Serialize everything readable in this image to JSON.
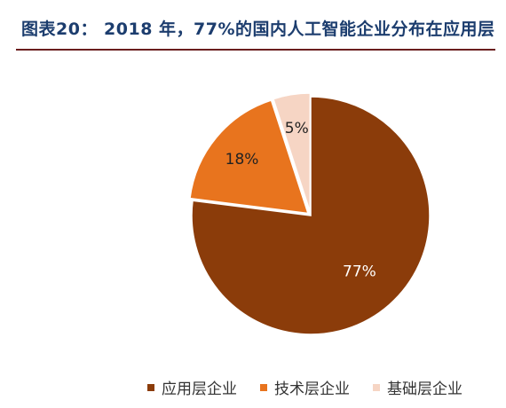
{
  "title": "图表20： 2018 年，77%的国内人工智能企业分布在应用层",
  "chart_data": {
    "type": "pie",
    "labels": [
      "应用层企业",
      "技术层企业",
      "基础层企业"
    ],
    "values": [
      77,
      18,
      5
    ],
    "data_labels": [
      "77%",
      "18%",
      "5%"
    ],
    "colors": [
      "#8b3c0a",
      "#e8741e",
      "#f6d5c4"
    ],
    "legend_position": "bottom",
    "start_angle": "12 o'clock",
    "direction": "clockwise"
  }
}
